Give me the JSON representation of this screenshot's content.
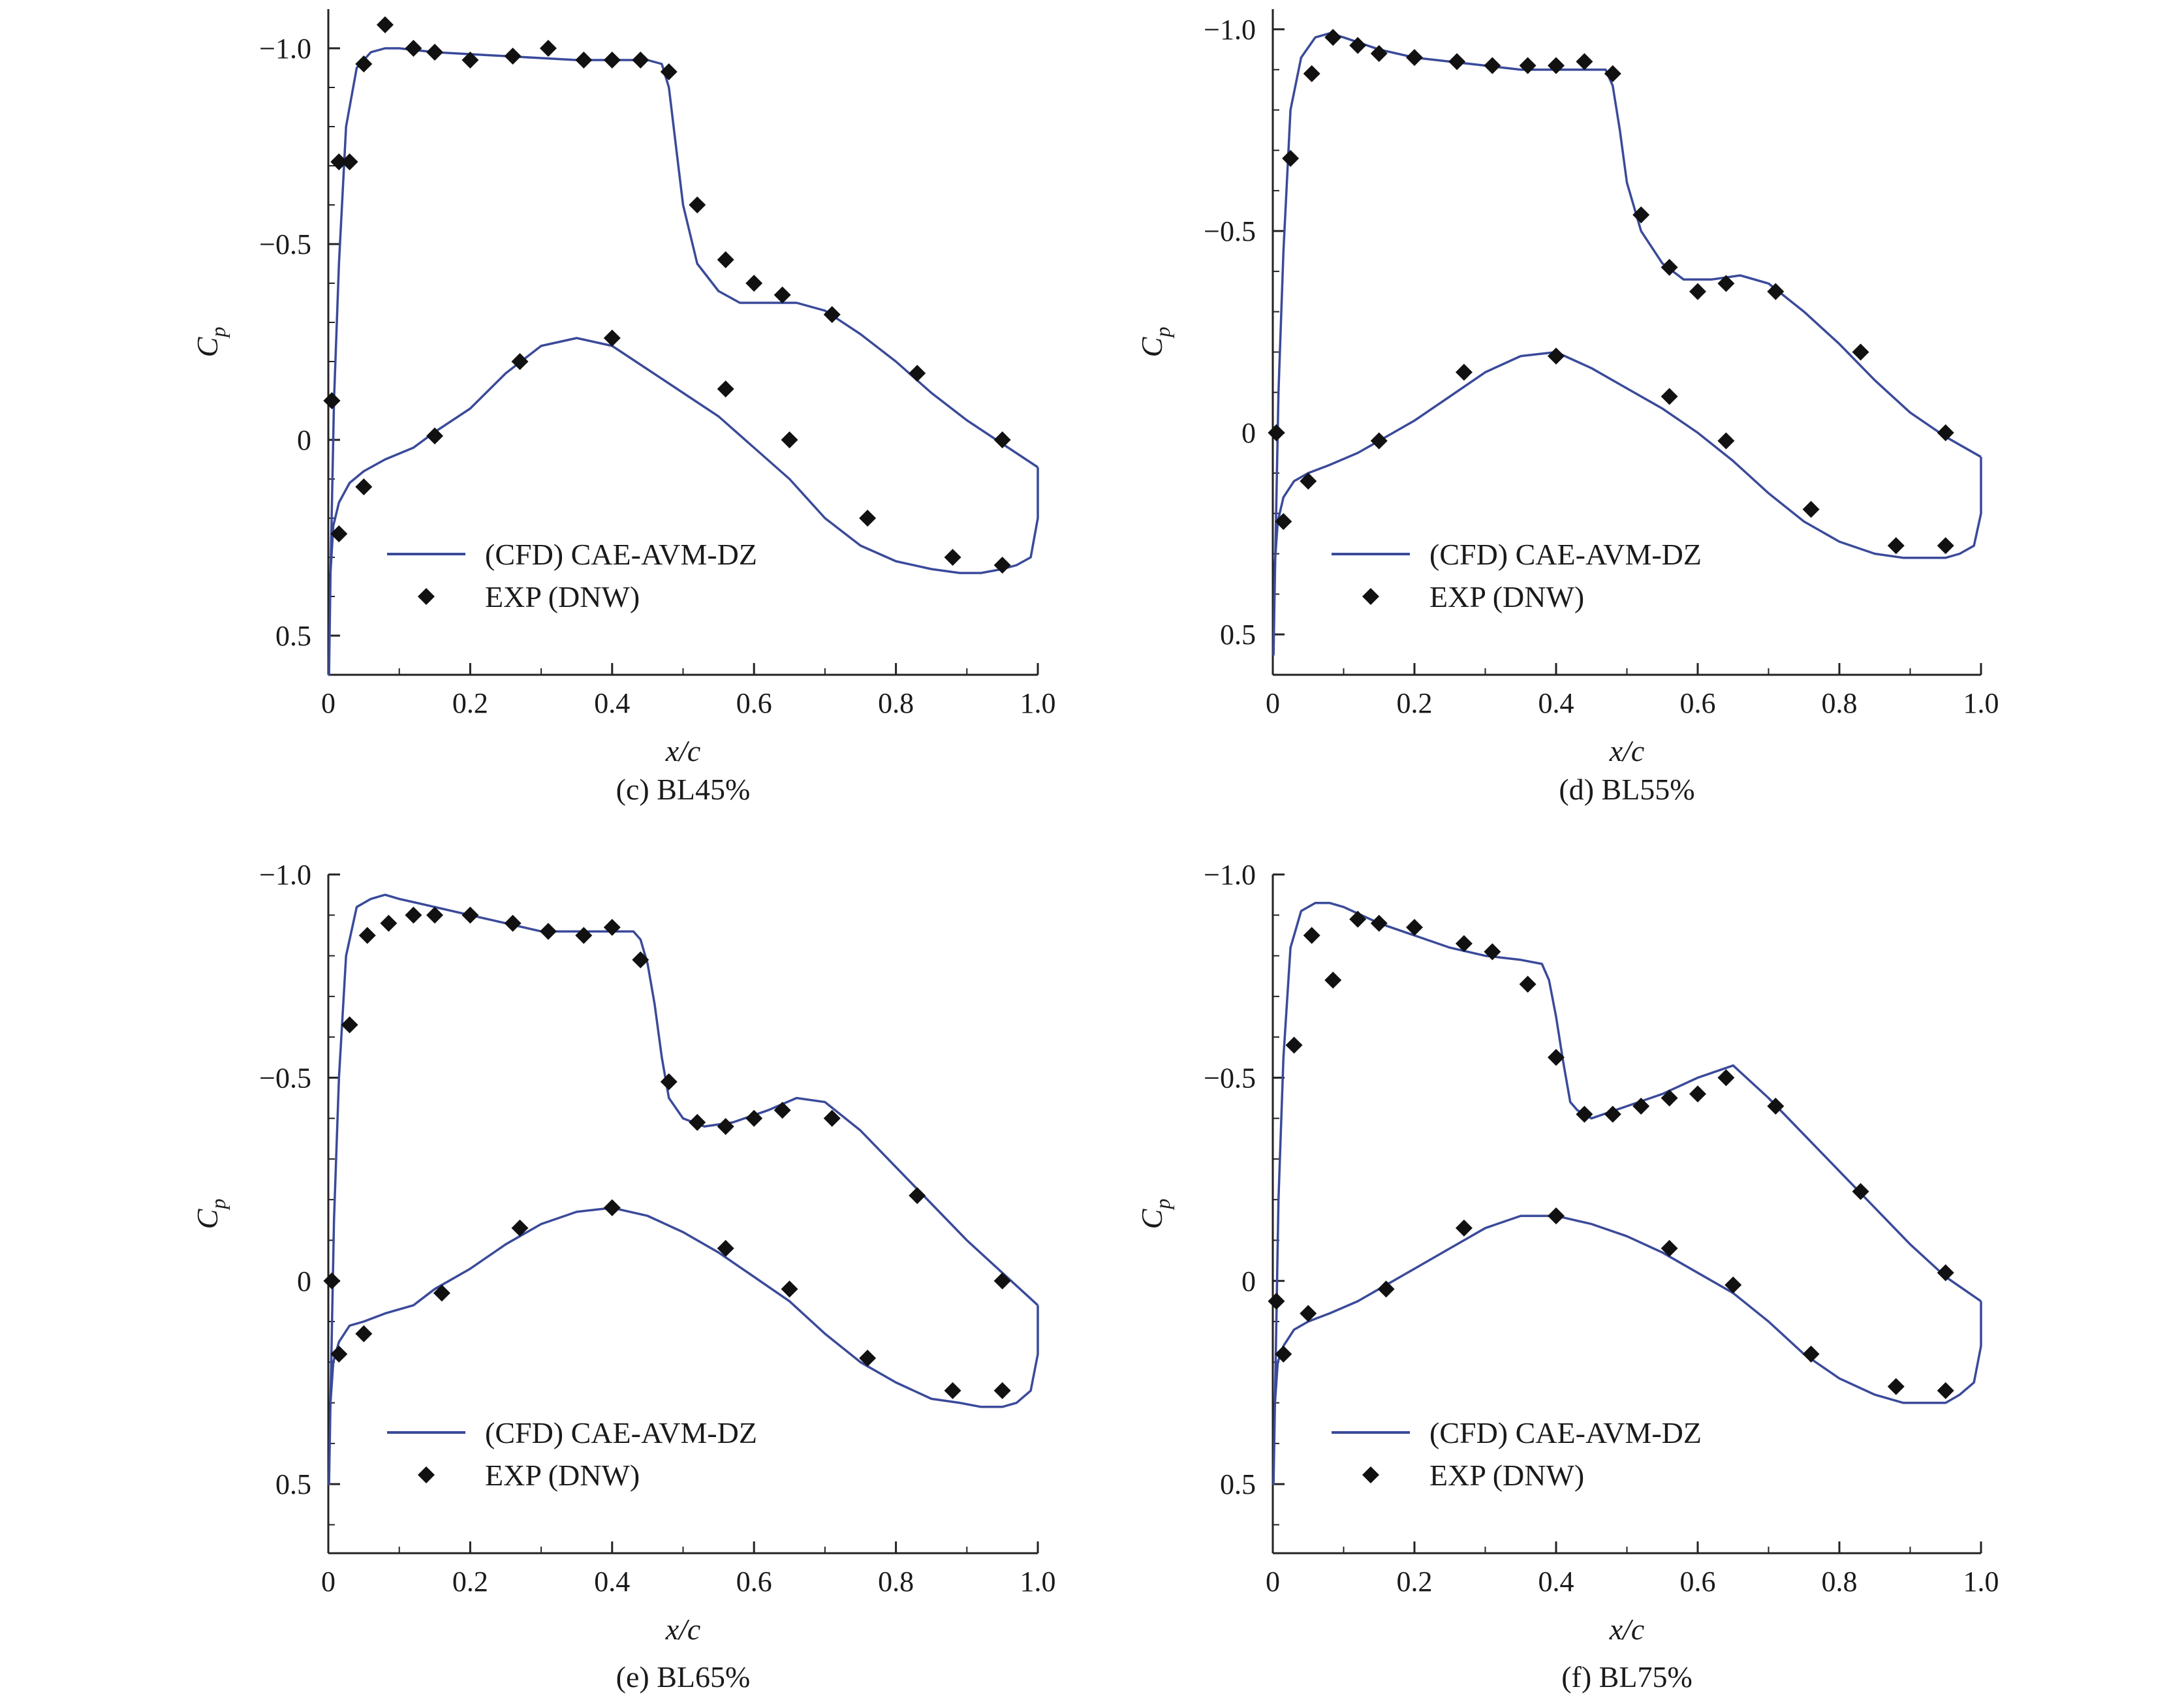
{
  "figure": {
    "panel_count": 4
  },
  "chart_data": [
    {
      "id": "c",
      "type": "line",
      "caption": "(c) BL45%",
      "xlabel": "x/c",
      "ylabel": "C",
      "ylabel_sub": "p",
      "xlim": [
        0,
        1.0
      ],
      "ylim": [
        0.6,
        -1.1
      ],
      "y_inverted": true,
      "xticks": [
        0,
        0.2,
        0.4,
        0.6,
        0.8,
        1.0
      ],
      "xtick_labels": [
        "0",
        "0.2",
        "0.4",
        "0.6",
        "0.8",
        "1.0"
      ],
      "yticks": [
        -1.0,
        -0.5,
        0,
        0.5
      ],
      "ytick_labels": [
        "−1.0",
        "−0.5",
        "0",
        "0.5"
      ],
      "legend": [
        "(CFD) CAE-AVM-DZ",
        "EXP (DNW)"
      ],
      "legend_position": "bottom-left",
      "series": [
        {
          "name": "(CFD) CAE-AVM-DZ",
          "kind": "line",
          "color": "#3a4a9a",
          "x": [
            1.0,
            1.0,
            0.99,
            0.97,
            0.95,
            0.92,
            0.89,
            0.85,
            0.8,
            0.75,
            0.7,
            0.65,
            0.6,
            0.55,
            0.5,
            0.45,
            0.4,
            0.35,
            0.3,
            0.25,
            0.2,
            0.15,
            0.12,
            0.08,
            0.05,
            0.03,
            0.015,
            0.007,
            0.003,
            0.001,
            0.003,
            0.008,
            0.015,
            0.025,
            0.04,
            0.06,
            0.08,
            0.1,
            0.15,
            0.2,
            0.25,
            0.3,
            0.35,
            0.4,
            0.45,
            0.47,
            0.48,
            0.49,
            0.5,
            0.52,
            0.55,
            0.58,
            0.62,
            0.66,
            0.7,
            0.75,
            0.8,
            0.85,
            0.9,
            0.95,
            1.0
          ],
          "y": [
            0.07,
            0.2,
            0.3,
            0.32,
            0.33,
            0.34,
            0.34,
            0.33,
            0.31,
            0.27,
            0.2,
            0.1,
            0.02,
            -0.06,
            -0.12,
            -0.18,
            -0.24,
            -0.26,
            -0.24,
            -0.17,
            -0.08,
            -0.02,
            0.02,
            0.05,
            0.08,
            0.11,
            0.16,
            0.22,
            0.34,
            0.6,
            0.35,
            -0.1,
            -0.45,
            -0.8,
            -0.95,
            -0.99,
            -1.0,
            -1.0,
            -0.99,
            -0.985,
            -0.98,
            -0.975,
            -0.97,
            -0.97,
            -0.97,
            -0.96,
            -0.9,
            -0.75,
            -0.6,
            -0.45,
            -0.38,
            -0.35,
            -0.35,
            -0.35,
            -0.33,
            -0.27,
            -0.2,
            -0.12,
            -0.05,
            0.01,
            0.07
          ]
        },
        {
          "name": "EXP (DNW)",
          "kind": "scatter",
          "color": "#111111",
          "x": [
            0.005,
            0.015,
            0.03,
            0.05,
            0.08,
            0.12,
            0.15,
            0.2,
            0.26,
            0.31,
            0.36,
            0.4,
            0.44,
            0.48,
            0.52,
            0.56,
            0.6,
            0.64,
            0.71,
            0.83,
            0.95,
            0.005,
            0.015,
            0.05,
            0.15,
            0.27,
            0.4,
            0.56,
            0.65,
            0.76,
            0.88,
            0.95
          ],
          "y": [
            -0.1,
            -0.71,
            -0.71,
            -0.96,
            -1.06,
            -1.0,
            -0.99,
            -0.97,
            -0.98,
            -1.0,
            -0.97,
            -0.97,
            -0.97,
            -0.94,
            -0.6,
            -0.46,
            -0.4,
            -0.37,
            -0.32,
            -0.17,
            0.0,
            -0.1,
            0.24,
            0.12,
            -0.01,
            -0.2,
            -0.26,
            -0.13,
            0.0,
            0.2,
            0.3,
            0.32
          ]
        }
      ]
    },
    {
      "id": "d",
      "type": "line",
      "caption": "(d) BL55%",
      "xlabel": "x/c",
      "ylabel": "C",
      "ylabel_sub": "p",
      "xlim": [
        0,
        1.0
      ],
      "ylim": [
        0.6,
        -1.05
      ],
      "y_inverted": true,
      "xticks": [
        0,
        0.2,
        0.4,
        0.6,
        0.8,
        1.0
      ],
      "xtick_labels": [
        "0",
        "0.2",
        "0.4",
        "0.6",
        "0.8",
        "1.0"
      ],
      "yticks": [
        -1.0,
        -0.5,
        0,
        0.5
      ],
      "ytick_labels": [
        "−1.0",
        "−0.5",
        "0",
        "0.5"
      ],
      "legend": [
        "(CFD) CAE-AVM-DZ",
        "EXP (DNW)"
      ],
      "legend_position": "bottom-left",
      "series": [
        {
          "name": "(CFD) CAE-AVM-DZ",
          "kind": "line",
          "color": "#3a4a9a",
          "x": [
            1.0,
            1.0,
            0.99,
            0.97,
            0.95,
            0.92,
            0.89,
            0.85,
            0.8,
            0.75,
            0.7,
            0.65,
            0.6,
            0.55,
            0.5,
            0.45,
            0.4,
            0.35,
            0.3,
            0.25,
            0.2,
            0.15,
            0.12,
            0.08,
            0.05,
            0.03,
            0.015,
            0.007,
            0.003,
            0.001,
            0.003,
            0.008,
            0.015,
            0.025,
            0.04,
            0.06,
            0.08,
            0.1,
            0.15,
            0.2,
            0.25,
            0.3,
            0.35,
            0.4,
            0.45,
            0.47,
            0.48,
            0.49,
            0.5,
            0.52,
            0.55,
            0.58,
            0.62,
            0.66,
            0.7,
            0.75,
            0.8,
            0.85,
            0.9,
            0.95,
            1.0
          ],
          "y": [
            0.06,
            0.2,
            0.28,
            0.3,
            0.31,
            0.31,
            0.31,
            0.3,
            0.27,
            0.22,
            0.15,
            0.07,
            0.0,
            -0.06,
            -0.11,
            -0.16,
            -0.2,
            -0.19,
            -0.15,
            -0.09,
            -0.03,
            0.02,
            0.05,
            0.08,
            0.1,
            0.12,
            0.16,
            0.22,
            0.32,
            0.55,
            0.35,
            -0.1,
            -0.45,
            -0.8,
            -0.93,
            -0.98,
            -0.99,
            -0.98,
            -0.95,
            -0.93,
            -0.92,
            -0.91,
            -0.9,
            -0.9,
            -0.9,
            -0.9,
            -0.86,
            -0.75,
            -0.62,
            -0.5,
            -0.42,
            -0.38,
            -0.38,
            -0.39,
            -0.37,
            -0.3,
            -0.22,
            -0.13,
            -0.05,
            0.01,
            0.06
          ]
        },
        {
          "name": "EXP (DNW)",
          "kind": "scatter",
          "color": "#111111",
          "x": [
            0.005,
            0.025,
            0.055,
            0.085,
            0.12,
            0.15,
            0.2,
            0.26,
            0.31,
            0.36,
            0.4,
            0.44,
            0.48,
            0.52,
            0.56,
            0.6,
            0.64,
            0.71,
            0.83,
            0.95,
            0.005,
            0.015,
            0.05,
            0.15,
            0.27,
            0.4,
            0.56,
            0.64,
            0.76,
            0.88,
            0.95
          ],
          "y": [
            0.0,
            -0.68,
            -0.89,
            -0.98,
            -0.96,
            -0.94,
            -0.93,
            -0.92,
            -0.91,
            -0.91,
            -0.91,
            -0.92,
            -0.89,
            -0.54,
            -0.41,
            -0.35,
            -0.37,
            -0.35,
            -0.2,
            0.0,
            0.0,
            0.22,
            0.12,
            0.02,
            -0.15,
            -0.19,
            -0.09,
            0.02,
            0.19,
            0.28,
            0.28
          ]
        }
      ]
    },
    {
      "id": "e",
      "type": "line",
      "caption": "(e) BL65%",
      "xlabel": "x/c",
      "ylabel": "C",
      "ylabel_sub": "p",
      "xlim": [
        0,
        1.0
      ],
      "ylim": [
        0.67,
        -1.0
      ],
      "y_inverted": true,
      "xticks": [
        0,
        0.2,
        0.4,
        0.6,
        0.8,
        1.0
      ],
      "xtick_labels": [
        "0",
        "0.2",
        "0.4",
        "0.6",
        "0.8",
        "1.0"
      ],
      "yticks": [
        -1.0,
        -0.5,
        0,
        0.5
      ],
      "ytick_labels": [
        "−1.0",
        "−0.5",
        "0",
        "0.5"
      ],
      "legend": [
        "(CFD) CAE-AVM-DZ",
        "EXP (DNW)"
      ],
      "legend_position": "bottom-left",
      "series": [
        {
          "name": "(CFD) CAE-AVM-DZ",
          "kind": "line",
          "color": "#3a4a9a",
          "x": [
            1.0,
            1.0,
            0.99,
            0.97,
            0.95,
            0.92,
            0.89,
            0.85,
            0.8,
            0.75,
            0.7,
            0.65,
            0.6,
            0.55,
            0.5,
            0.45,
            0.4,
            0.35,
            0.3,
            0.25,
            0.2,
            0.15,
            0.12,
            0.08,
            0.05,
            0.03,
            0.015,
            0.007,
            0.003,
            0.001,
            0.003,
            0.008,
            0.015,
            0.025,
            0.04,
            0.06,
            0.08,
            0.1,
            0.15,
            0.2,
            0.25,
            0.3,
            0.35,
            0.4,
            0.43,
            0.44,
            0.45,
            0.46,
            0.47,
            0.48,
            0.5,
            0.53,
            0.57,
            0.62,
            0.66,
            0.7,
            0.75,
            0.8,
            0.85,
            0.9,
            0.95,
            1.0
          ],
          "y": [
            0.06,
            0.18,
            0.27,
            0.3,
            0.31,
            0.31,
            0.3,
            0.29,
            0.25,
            0.2,
            0.13,
            0.05,
            -0.01,
            -0.07,
            -0.12,
            -0.16,
            -0.18,
            -0.17,
            -0.14,
            -0.09,
            -0.03,
            0.02,
            0.06,
            0.08,
            0.1,
            0.11,
            0.15,
            0.2,
            0.3,
            0.5,
            0.3,
            -0.15,
            -0.5,
            -0.8,
            -0.92,
            -0.94,
            -0.95,
            -0.94,
            -0.92,
            -0.9,
            -0.88,
            -0.86,
            -0.86,
            -0.86,
            -0.86,
            -0.84,
            -0.78,
            -0.68,
            -0.55,
            -0.45,
            -0.4,
            -0.38,
            -0.39,
            -0.42,
            -0.45,
            -0.44,
            -0.37,
            -0.28,
            -0.19,
            -0.1,
            -0.02,
            0.06
          ]
        },
        {
          "name": "EXP (DNW)",
          "kind": "scatter",
          "color": "#111111",
          "x": [
            0.005,
            0.03,
            0.055,
            0.085,
            0.12,
            0.15,
            0.2,
            0.26,
            0.31,
            0.36,
            0.4,
            0.44,
            0.48,
            0.52,
            0.56,
            0.6,
            0.64,
            0.71,
            0.83,
            0.95,
            0.015,
            0.05,
            0.16,
            0.27,
            0.4,
            0.56,
            0.65,
            0.76,
            0.88,
            0.95
          ],
          "y": [
            0.0,
            -0.63,
            -0.85,
            -0.88,
            -0.9,
            -0.9,
            -0.9,
            -0.88,
            -0.86,
            -0.85,
            -0.87,
            -0.79,
            -0.49,
            -0.39,
            -0.38,
            -0.4,
            -0.42,
            -0.4,
            -0.21,
            0.0,
            0.18,
            0.13,
            0.03,
            -0.13,
            -0.18,
            -0.08,
            0.02,
            0.19,
            0.27,
            0.27
          ]
        }
      ]
    },
    {
      "id": "f",
      "type": "line",
      "caption": "(f) BL75%",
      "xlabel": "x/c",
      "ylabel": "C",
      "ylabel_sub": "p",
      "xlim": [
        0,
        1.0
      ],
      "ylim": [
        0.67,
        -1.0
      ],
      "y_inverted": true,
      "xticks": [
        0,
        0.2,
        0.4,
        0.6,
        0.8,
        1.0
      ],
      "xtick_labels": [
        "0",
        "0.2",
        "0.4",
        "0.6",
        "0.8",
        "1.0"
      ],
      "yticks": [
        -1.0,
        -0.5,
        0,
        0.5
      ],
      "ytick_labels": [
        "−1.0",
        "−0.5",
        "0",
        "0.5"
      ],
      "legend": [
        "(CFD) CAE-AVM-DZ",
        "EXP (DNW)"
      ],
      "legend_position": "bottom-left",
      "series": [
        {
          "name": "(CFD) CAE-AVM-DZ",
          "kind": "line",
          "color": "#3a4a9a",
          "x": [
            1.0,
            1.0,
            0.99,
            0.97,
            0.95,
            0.92,
            0.89,
            0.85,
            0.8,
            0.75,
            0.7,
            0.65,
            0.6,
            0.55,
            0.5,
            0.45,
            0.4,
            0.35,
            0.3,
            0.25,
            0.2,
            0.15,
            0.12,
            0.08,
            0.05,
            0.03,
            0.015,
            0.007,
            0.003,
            0.001,
            0.003,
            0.008,
            0.015,
            0.025,
            0.04,
            0.06,
            0.08,
            0.1,
            0.15,
            0.2,
            0.25,
            0.3,
            0.35,
            0.38,
            0.39,
            0.4,
            0.41,
            0.42,
            0.43,
            0.45,
            0.5,
            0.55,
            0.6,
            0.65,
            0.7,
            0.75,
            0.8,
            0.85,
            0.9,
            0.95,
            1.0
          ],
          "y": [
            0.05,
            0.16,
            0.25,
            0.28,
            0.3,
            0.3,
            0.3,
            0.28,
            0.24,
            0.18,
            0.1,
            0.03,
            -0.02,
            -0.07,
            -0.11,
            -0.14,
            -0.16,
            -0.16,
            -0.13,
            -0.08,
            -0.03,
            0.02,
            0.05,
            0.08,
            0.1,
            0.12,
            0.16,
            0.2,
            0.3,
            0.5,
            0.3,
            -0.2,
            -0.55,
            -0.82,
            -0.91,
            -0.93,
            -0.93,
            -0.92,
            -0.88,
            -0.85,
            -0.82,
            -0.8,
            -0.79,
            -0.78,
            -0.74,
            -0.65,
            -0.54,
            -0.44,
            -0.42,
            -0.4,
            -0.43,
            -0.46,
            -0.5,
            -0.53,
            -0.45,
            -0.36,
            -0.27,
            -0.18,
            -0.09,
            -0.01,
            0.05
          ]
        },
        {
          "name": "EXP (DNW)",
          "kind": "scatter",
          "color": "#111111",
          "x": [
            0.005,
            0.03,
            0.055,
            0.085,
            0.12,
            0.15,
            0.2,
            0.27,
            0.31,
            0.36,
            0.4,
            0.44,
            0.48,
            0.52,
            0.56,
            0.6,
            0.64,
            0.71,
            0.83,
            0.95,
            0.015,
            0.05,
            0.16,
            0.27,
            0.4,
            0.56,
            0.65,
            0.76,
            0.88,
            0.95
          ],
          "y": [
            0.05,
            -0.58,
            -0.85,
            -0.74,
            -0.89,
            -0.88,
            -0.87,
            -0.83,
            -0.81,
            -0.73,
            -0.55,
            -0.41,
            -0.41,
            -0.43,
            -0.45,
            -0.46,
            -0.5,
            -0.43,
            -0.22,
            -0.02,
            0.18,
            0.08,
            0.02,
            -0.13,
            -0.16,
            -0.08,
            0.01,
            0.18,
            0.26,
            0.27
          ]
        }
      ]
    }
  ]
}
